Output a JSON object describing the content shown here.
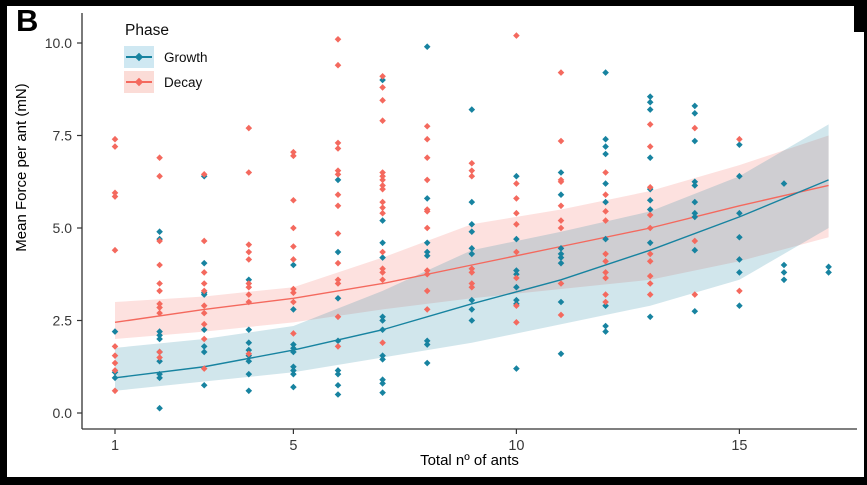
{
  "figure": {
    "panel_label": "B",
    "background": "#ffffff",
    "frame_color": "#000000"
  },
  "legend": {
    "title": "Phase",
    "position": "top-left-inside",
    "entries": [
      {
        "label": "Growth",
        "color": "#1783A0",
        "swatch_bg": "#cfe8f2"
      },
      {
        "label": "Decay",
        "color": "#F4695E",
        "swatch_bg": "#fbdcd7"
      }
    ]
  },
  "chart_data": {
    "type": "scatter",
    "title": "",
    "xlabel": "Total nº of ants",
    "ylabel": "Mean Force per ant (mN)",
    "x_ticks": [
      1,
      5,
      10,
      15
    ],
    "y_ticks": [
      {
        "v": 0,
        "label": "0.0"
      },
      {
        "v": 2.5,
        "label": "2.5"
      },
      {
        "v": 5,
        "label": "5.0"
      },
      {
        "v": 7.5,
        "label": "7.5"
      },
      {
        "v": 10,
        "label": "10.0"
      }
    ],
    "xlim": [
      0.28,
      17.6
    ],
    "ylim": [
      -0.45,
      10.9
    ],
    "grid": false,
    "marker": "diamond",
    "axis_color": "#333333",
    "tick_label_color": "#383838",
    "series": [
      {
        "name": "Growth",
        "color": "#1783A0",
        "band_fill": "rgba(23,131,160,0.20)",
        "trend": {
          "x": [
            1,
            3,
            5,
            7,
            9,
            11,
            13,
            15,
            17
          ],
          "fit": [
            0.95,
            1.25,
            1.7,
            2.25,
            2.95,
            3.6,
            4.4,
            5.3,
            6.3
          ],
          "upper": [
            1.76,
            2.0,
            2.35,
            3.3,
            4.4,
            4.9,
            5.45,
            6.4,
            7.8
          ],
          "lower": [
            0.6,
            0.85,
            1.1,
            1.5,
            1.9,
            2.4,
            2.9,
            3.6,
            5.0
          ]
        },
        "points": [
          [
            1,
            2.2
          ],
          [
            1,
            1.1
          ],
          [
            1,
            0.95
          ],
          [
            2,
            4.9
          ],
          [
            2,
            4.7
          ],
          [
            2,
            2.2
          ],
          [
            2,
            2.1
          ],
          [
            2,
            2.0
          ],
          [
            2,
            1.65
          ],
          [
            2,
            1.4
          ],
          [
            2,
            1.05
          ],
          [
            2,
            0.95
          ],
          [
            2,
            0.13
          ],
          [
            3,
            6.4
          ],
          [
            3,
            4.05
          ],
          [
            3,
            3.25
          ],
          [
            3,
            3.2
          ],
          [
            3,
            2.25
          ],
          [
            3,
            1.8
          ],
          [
            3,
            1.65
          ],
          [
            3,
            0.75
          ],
          [
            4,
            3.6
          ],
          [
            4,
            2.25
          ],
          [
            4,
            1.9
          ],
          [
            4,
            1.7
          ],
          [
            4,
            1.55
          ],
          [
            4,
            1.4
          ],
          [
            4,
            1.05
          ],
          [
            4,
            0.6
          ],
          [
            5,
            4.0
          ],
          [
            5,
            2.8
          ],
          [
            5,
            1.85
          ],
          [
            5,
            1.75
          ],
          [
            5,
            1.65
          ],
          [
            5,
            1.25
          ],
          [
            5,
            1.15
          ],
          [
            5,
            1.05
          ],
          [
            5,
            0.7
          ],
          [
            6,
            6.3
          ],
          [
            6,
            4.35
          ],
          [
            6,
            3.1
          ],
          [
            6,
            1.95
          ],
          [
            6,
            1.15
          ],
          [
            6,
            1.05
          ],
          [
            6,
            0.75
          ],
          [
            6,
            0.5
          ],
          [
            7,
            9.0
          ],
          [
            7,
            5.2
          ],
          [
            7,
            4.6
          ],
          [
            7,
            4.2
          ],
          [
            7,
            2.6
          ],
          [
            7,
            2.5
          ],
          [
            7,
            2.25
          ],
          [
            7,
            1.55
          ],
          [
            7,
            1.45
          ],
          [
            7,
            0.9
          ],
          [
            7,
            0.8
          ],
          [
            7,
            0.55
          ],
          [
            8,
            9.9
          ],
          [
            8,
            5.8
          ],
          [
            8,
            4.6
          ],
          [
            8,
            4.35
          ],
          [
            8,
            4.25
          ],
          [
            8,
            1.95
          ],
          [
            8,
            1.85
          ],
          [
            8,
            1.35
          ],
          [
            9,
            8.2
          ],
          [
            9,
            5.7
          ],
          [
            9,
            5.1
          ],
          [
            9,
            4.9
          ],
          [
            9,
            4.45
          ],
          [
            9,
            4.3
          ],
          [
            9,
            3.05
          ],
          [
            9,
            2.8
          ],
          [
            9,
            2.5
          ],
          [
            10,
            6.4
          ],
          [
            10,
            4.7
          ],
          [
            10,
            3.85
          ],
          [
            10,
            3.75
          ],
          [
            10,
            3.4
          ],
          [
            10,
            3.05
          ],
          [
            10,
            2.95
          ],
          [
            10,
            1.2
          ],
          [
            11,
            6.5
          ],
          [
            11,
            5.9
          ],
          [
            11,
            4.45
          ],
          [
            11,
            4.3
          ],
          [
            11,
            4.2
          ],
          [
            11,
            4.05
          ],
          [
            11,
            3.0
          ],
          [
            11,
            1.6
          ],
          [
            12,
            9.2
          ],
          [
            12,
            7.4
          ],
          [
            12,
            7.2
          ],
          [
            12,
            7.0
          ],
          [
            12,
            6.2
          ],
          [
            12,
            5.7
          ],
          [
            12,
            4.7
          ],
          [
            12,
            2.9
          ],
          [
            12,
            2.35
          ],
          [
            12,
            2.2
          ],
          [
            13,
            8.55
          ],
          [
            13,
            8.4
          ],
          [
            13,
            8.2
          ],
          [
            13,
            6.9
          ],
          [
            13,
            6.05
          ],
          [
            13,
            5.75
          ],
          [
            13,
            5.5
          ],
          [
            13,
            4.6
          ],
          [
            13,
            2.6
          ],
          [
            14,
            8.3
          ],
          [
            14,
            8.1
          ],
          [
            14,
            7.35
          ],
          [
            14,
            6.25
          ],
          [
            14,
            6.15
          ],
          [
            14,
            5.7
          ],
          [
            14,
            5.4
          ],
          [
            14,
            5.3
          ],
          [
            14,
            4.4
          ],
          [
            14,
            2.75
          ],
          [
            15,
            7.25
          ],
          [
            15,
            6.4
          ],
          [
            15,
            5.4
          ],
          [
            15,
            4.75
          ],
          [
            15,
            4.15
          ],
          [
            15,
            3.8
          ],
          [
            15,
            2.9
          ],
          [
            16,
            6.2
          ],
          [
            16,
            4.0
          ],
          [
            16,
            3.8
          ],
          [
            16,
            3.6
          ],
          [
            17,
            3.95
          ],
          [
            17,
            3.8
          ]
        ]
      },
      {
        "name": "Decay",
        "color": "#F4695E",
        "band_fill": "rgba(244,105,94,0.20)",
        "trend": {
          "x": [
            1,
            3,
            5,
            7,
            9,
            11,
            13,
            15,
            17
          ],
          "fit": [
            2.45,
            2.8,
            3.1,
            3.5,
            4.0,
            4.5,
            5.0,
            5.6,
            6.15
          ],
          "upper": [
            3.0,
            3.15,
            3.4,
            4.2,
            5.1,
            5.5,
            6.0,
            6.7,
            7.5
          ],
          "lower": [
            2.0,
            2.2,
            2.45,
            2.8,
            3.1,
            3.35,
            3.6,
            4.1,
            4.75
          ]
        },
        "points": [
          [
            1,
            7.4
          ],
          [
            1,
            7.2
          ],
          [
            1,
            5.95
          ],
          [
            1,
            5.85
          ],
          [
            1,
            4.4
          ],
          [
            1,
            1.8
          ],
          [
            1,
            1.55
          ],
          [
            1,
            1.35
          ],
          [
            1,
            1.15
          ],
          [
            1,
            0.6
          ],
          [
            2,
            6.9
          ],
          [
            2,
            6.4
          ],
          [
            2,
            4.65
          ],
          [
            2,
            4.0
          ],
          [
            2,
            3.5
          ],
          [
            2,
            3.3
          ],
          [
            2,
            2.95
          ],
          [
            2,
            2.85
          ],
          [
            2,
            2.7
          ],
          [
            2,
            1.65
          ],
          [
            2,
            1.5
          ],
          [
            3,
            6.45
          ],
          [
            3,
            4.65
          ],
          [
            3,
            3.8
          ],
          [
            3,
            3.5
          ],
          [
            3,
            3.3
          ],
          [
            3,
            2.9
          ],
          [
            3,
            2.7
          ],
          [
            3,
            2.4
          ],
          [
            3,
            2.0
          ],
          [
            3,
            1.2
          ],
          [
            4,
            7.7
          ],
          [
            4,
            6.5
          ],
          [
            4,
            4.55
          ],
          [
            4,
            4.35
          ],
          [
            4,
            4.15
          ],
          [
            4,
            3.5
          ],
          [
            4,
            3.4
          ],
          [
            4,
            3.2
          ],
          [
            4,
            3.0
          ],
          [
            4,
            1.6
          ],
          [
            5,
            7.05
          ],
          [
            5,
            6.95
          ],
          [
            5,
            5.75
          ],
          [
            5,
            5.0
          ],
          [
            5,
            4.5
          ],
          [
            5,
            4.15
          ],
          [
            5,
            3.35
          ],
          [
            5,
            3.25
          ],
          [
            5,
            3.0
          ],
          [
            5,
            2.15
          ],
          [
            6,
            10.1
          ],
          [
            6,
            9.4
          ],
          [
            6,
            7.3
          ],
          [
            6,
            7.15
          ],
          [
            6,
            6.55
          ],
          [
            6,
            6.45
          ],
          [
            6,
            5.9
          ],
          [
            6,
            5.6
          ],
          [
            6,
            4.85
          ],
          [
            6,
            4.05
          ],
          [
            6,
            3.6
          ],
          [
            6,
            3.5
          ],
          [
            6,
            2.6
          ],
          [
            6,
            1.8
          ],
          [
            7,
            9.1
          ],
          [
            7,
            8.8
          ],
          [
            7,
            8.45
          ],
          [
            7,
            7.9
          ],
          [
            7,
            6.5
          ],
          [
            7,
            6.4
          ],
          [
            7,
            6.3
          ],
          [
            7,
            6.15
          ],
          [
            7,
            6.05
          ],
          [
            7,
            5.7
          ],
          [
            7,
            5.55
          ],
          [
            7,
            5.4
          ],
          [
            7,
            4.35
          ],
          [
            7,
            3.9
          ],
          [
            7,
            3.8
          ],
          [
            7,
            3.6
          ],
          [
            7,
            1.9
          ],
          [
            8,
            7.75
          ],
          [
            8,
            7.4
          ],
          [
            8,
            6.9
          ],
          [
            8,
            6.3
          ],
          [
            8,
            5.5
          ],
          [
            8,
            5.45
          ],
          [
            8,
            5.0
          ],
          [
            8,
            3.85
          ],
          [
            8,
            3.75
          ],
          [
            8,
            3.3
          ],
          [
            8,
            2.8
          ],
          [
            9,
            6.75
          ],
          [
            9,
            6.55
          ],
          [
            9,
            6.4
          ],
          [
            9,
            3.9
          ],
          [
            9,
            3.8
          ],
          [
            9,
            3.5
          ],
          [
            9,
            3.4
          ],
          [
            10,
            10.2
          ],
          [
            10,
            6.2
          ],
          [
            10,
            5.8
          ],
          [
            10,
            5.4
          ],
          [
            10,
            5.1
          ],
          [
            10,
            4.35
          ],
          [
            10,
            3.65
          ],
          [
            10,
            2.9
          ],
          [
            10,
            2.45
          ],
          [
            11,
            9.2
          ],
          [
            11,
            7.35
          ],
          [
            11,
            6.3
          ],
          [
            11,
            6.25
          ],
          [
            11,
            5.6
          ],
          [
            11,
            5.2
          ],
          [
            11,
            5.0
          ],
          [
            11,
            3.5
          ],
          [
            11,
            2.65
          ],
          [
            12,
            6.5
          ],
          [
            12,
            5.9
          ],
          [
            12,
            5.45
          ],
          [
            12,
            5.2
          ],
          [
            12,
            4.3
          ],
          [
            12,
            4.1
          ],
          [
            12,
            3.8
          ],
          [
            12,
            3.65
          ],
          [
            12,
            3.2
          ],
          [
            12,
            3.0
          ],
          [
            13,
            7.8
          ],
          [
            13,
            7.2
          ],
          [
            13,
            6.1
          ],
          [
            13,
            5.35
          ],
          [
            13,
            5.0
          ],
          [
            13,
            4.3
          ],
          [
            13,
            4.1
          ],
          [
            13,
            3.7
          ],
          [
            13,
            3.5
          ],
          [
            13,
            3.2
          ],
          [
            14,
            7.7
          ],
          [
            14,
            4.65
          ],
          [
            14,
            3.2
          ],
          [
            15,
            7.4
          ],
          [
            15,
            3.3
          ]
        ]
      }
    ]
  }
}
